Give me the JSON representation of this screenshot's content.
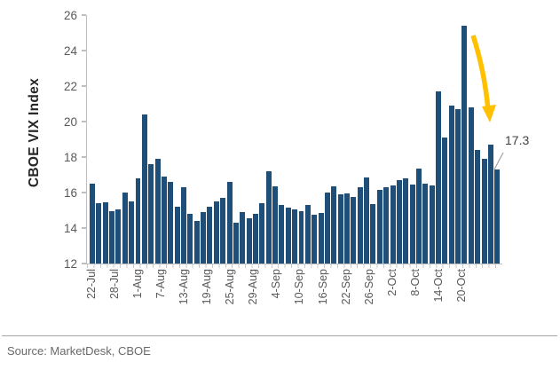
{
  "chart_data": {
    "type": "bar",
    "title": "",
    "ylabel": "CBOE VIX Index",
    "xlabel": "",
    "ylim": [
      12,
      26
    ],
    "y_ticks": [
      26,
      24,
      22,
      20,
      18,
      16,
      14,
      12
    ],
    "grid": "off",
    "legend": "none",
    "bar_color": "#1f4e79",
    "axis_color": "#bfbfbf",
    "tick_text_color": "#595959",
    "arrow_color": "#ffc000",
    "x_tick_labels": [
      "22-Jul",
      "28-Jul",
      "1-Aug",
      "7-Aug",
      "13-Aug",
      "19-Aug",
      "25-Aug",
      "29-Aug",
      "4-Sep",
      "10-Sep",
      "16-Sep",
      "22-Sep",
      "26-Sep",
      "2-Oct",
      "8-Oct",
      "14-Oct",
      "20-Oct"
    ],
    "values": [
      16.5,
      15.4,
      15.45,
      14.95,
      15.05,
      16.0,
      15.5,
      16.8,
      20.4,
      17.6,
      17.9,
      16.9,
      16.6,
      15.2,
      16.3,
      14.8,
      14.4,
      14.9,
      15.2,
      15.5,
      15.7,
      16.6,
      14.3,
      14.9,
      14.55,
      14.8,
      15.4,
      17.2,
      16.35,
      15.3,
      15.15,
      15.05,
      14.95,
      15.3,
      14.75,
      14.85,
      16.0,
      16.35,
      15.9,
      15.95,
      15.75,
      16.3,
      16.85,
      15.35,
      16.15,
      16.3,
      16.4,
      16.7,
      16.8,
      16.45,
      17.35,
      16.5,
      16.4,
      21.7,
      19.1,
      20.9,
      20.7,
      25.4,
      20.8,
      18.4,
      17.9,
      18.7,
      17.3
    ],
    "annotation": {
      "text": "17.3",
      "value": 17.3
    }
  },
  "source": {
    "text": "Source: MarketDesk, CBOE"
  }
}
